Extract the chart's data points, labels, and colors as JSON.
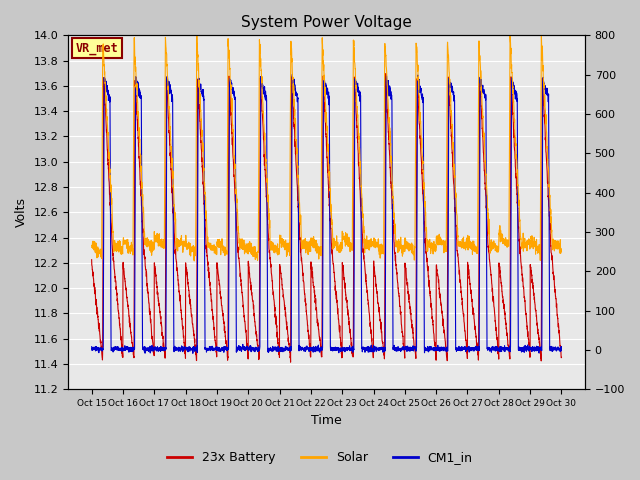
{
  "title": "System Power Voltage",
  "xlabel": "Time",
  "ylabel_left": "Volts",
  "ylim_left": [
    11.2,
    14.0
  ],
  "ylim_right": [
    -100,
    800
  ],
  "yticks_left": [
    11.2,
    11.4,
    11.6,
    11.8,
    12.0,
    12.2,
    12.4,
    12.6,
    12.8,
    13.0,
    13.2,
    13.4,
    13.6,
    13.8,
    14.0
  ],
  "yticks_right": [
    -100,
    0,
    100,
    200,
    300,
    400,
    500,
    600,
    700,
    800
  ],
  "xtick_labels": [
    "Oct 15",
    "Oct 16",
    "Oct 17",
    "Oct 18",
    "Oct 19",
    "Oct 20",
    "Oct 21",
    "Oct 22",
    "Oct 23",
    "Oct 24",
    "Oct 25",
    "Oct 26",
    "Oct 27",
    "Oct 28",
    "Oct 29",
    "Oct 30"
  ],
  "annotation_text": "VR_met",
  "annotation_fg": "#8B0000",
  "annotation_bg": "#FFFF99",
  "line_colors": {
    "battery": "#CC0000",
    "solar": "#FFA500",
    "cm1": "#0000CC"
  },
  "legend_labels": [
    "23x Battery",
    "Solar",
    "CM1_in"
  ],
  "fig_bg": "#C8C8C8",
  "axes_bg": "#E8E8E8",
  "grid_color": "#FFFFFF"
}
